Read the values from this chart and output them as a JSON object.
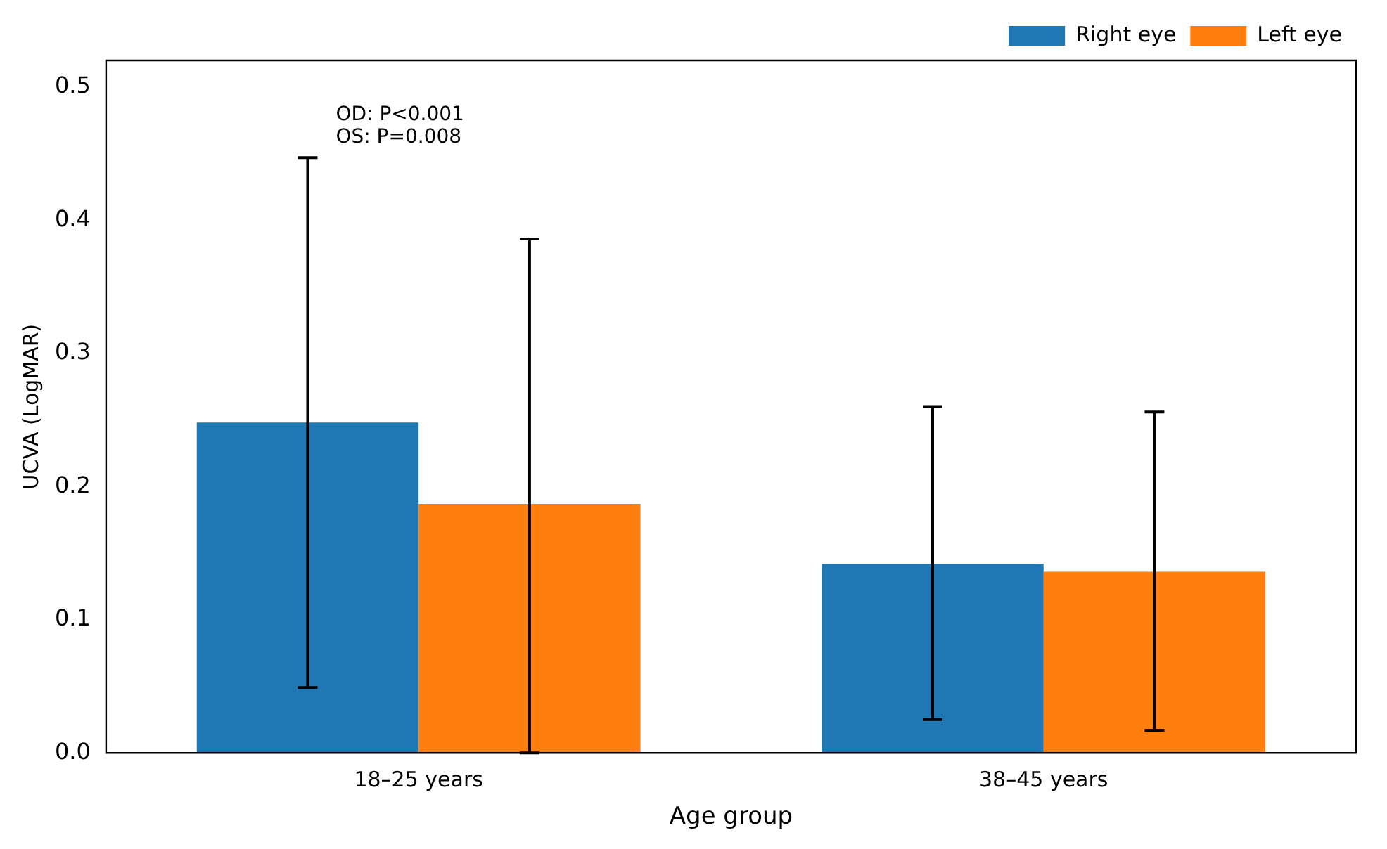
{
  "chart_data": {
    "type": "bar",
    "xlabel": "Age group",
    "ylabel": "UCVA (LogMAR)",
    "categories": [
      "18–25 years",
      "38–45 years"
    ],
    "series": [
      {
        "name": "Right eye",
        "color": "#1f77b4",
        "values": [
          0.248,
          0.142
        ],
        "errors": [
          [
            0.049,
            0.447
          ],
          [
            0.025,
            0.26
          ]
        ]
      },
      {
        "name": "Left eye",
        "color": "#ff7f0e",
        "values": [
          0.187,
          0.136
        ],
        "errors": [
          [
            0,
            0.386
          ],
          [
            0.017,
            0.256
          ]
        ]
      }
    ],
    "ylim": [
      0,
      0.52
    ],
    "yticks": [
      {
        "value": 0,
        "label": "0.0"
      },
      {
        "value": 0.1,
        "label": "0.1"
      },
      {
        "value": 0.2,
        "label": "0.2"
      },
      {
        "value": 0.3,
        "label": "0.3"
      },
      {
        "value": 0.4,
        "label": "0.4"
      },
      {
        "value": 0.5,
        "label": "0.5"
      }
    ],
    "annotations": [
      "OD: P<0.001",
      "OS: P=0.008"
    ],
    "legend": "top right",
    "grid": false
  }
}
